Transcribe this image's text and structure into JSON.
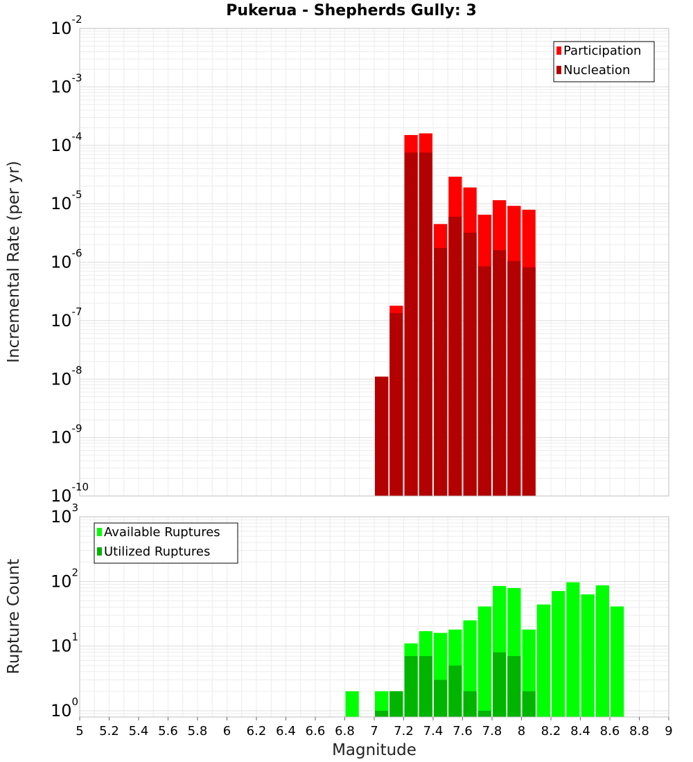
{
  "chart_data": {
    "title": "Pukerua - Shepherds Gully: 3",
    "xlabel": "Magnitude",
    "xlim": [
      5,
      9
    ],
    "xticks": [
      "5",
      "5.2",
      "5.4",
      "5.6",
      "5.8",
      "6",
      "6.2",
      "6.4",
      "6.6",
      "6.8",
      "7",
      "7.2",
      "7.4",
      "7.6",
      "7.8",
      "8",
      "8.2",
      "8.4",
      "8.6",
      "8.8",
      "9"
    ],
    "bin_width": 0.1,
    "panels": [
      {
        "type": "bar",
        "ylabel": "Incremental Rate (per yr)",
        "yscale": "log",
        "ylim": [
          1e-10,
          0.01
        ],
        "yticks": [
          {
            "base": "10",
            "exp": "-10"
          },
          {
            "base": "10",
            "exp": "-9"
          },
          {
            "base": "10",
            "exp": "-8"
          },
          {
            "base": "10",
            "exp": "-7"
          },
          {
            "base": "10",
            "exp": "-6"
          },
          {
            "base": "10",
            "exp": "-5"
          },
          {
            "base": "10",
            "exp": "-4"
          },
          {
            "base": "10",
            "exp": "-3"
          },
          {
            "base": "10",
            "exp": "-2"
          }
        ],
        "grid": true,
        "legend_position": "top-right",
        "series": [
          {
            "name": "Participation",
            "color": "#ff0000",
            "x": [
              7.05,
              7.15,
              7.25,
              7.35,
              7.45,
              7.55,
              7.65,
              7.75,
              7.85,
              7.95,
              8.05
            ],
            "values": [
              1.1e-08,
              1.8e-07,
              0.00015,
              0.00016,
              4.5e-06,
              2.9e-05,
              1.9e-05,
              6.5e-06,
              1.15e-05,
              9.2e-06,
              7.9e-06
            ]
          },
          {
            "name": "Nucleation",
            "color": "#b30000",
            "x": [
              7.05,
              7.15,
              7.25,
              7.35,
              7.45,
              7.55,
              7.65,
              7.75,
              7.85,
              7.95,
              8.05
            ],
            "values": [
              1.1e-08,
              1.35e-07,
              7.5e-05,
              7.5e-05,
              1.75e-06,
              6e-06,
              3.2e-06,
              8.5e-07,
              1.6e-06,
              1.05e-06,
              8.2e-07
            ]
          }
        ]
      },
      {
        "type": "bar",
        "ylabel": "Rupture Count",
        "yscale": "log",
        "ylim": [
          0.8,
          1000
        ],
        "yticks": [
          {
            "base": "10",
            "exp": "0"
          },
          {
            "base": "10",
            "exp": "1"
          },
          {
            "base": "10",
            "exp": "2"
          },
          {
            "base": "10",
            "exp": "3"
          }
        ],
        "grid": true,
        "legend_position": "top-left",
        "series": [
          {
            "name": "Available Ruptures",
            "color": "#00ff00",
            "x": [
              6.85,
              7.05,
              7.15,
              7.25,
              7.35,
              7.45,
              7.55,
              7.65,
              7.75,
              7.85,
              7.95,
              8.05,
              8.15,
              8.25,
              8.35,
              8.45,
              8.55,
              8.65
            ],
            "values": [
              2,
              2,
              2,
              11,
              17,
              16,
              18,
              25,
              41,
              85,
              79,
              18,
              44,
              71,
              97,
              63,
              87,
              41
            ]
          },
          {
            "name": "Utilized Ruptures",
            "color": "#00b400",
            "x": [
              7.05,
              7.15,
              7.25,
              7.35,
              7.45,
              7.55,
              7.65,
              7.75,
              7.85,
              7.95,
              8.05
            ],
            "values": [
              1,
              2,
              7,
              7,
              3,
              5,
              2,
              1,
              8,
              7,
              2
            ]
          }
        ]
      }
    ]
  }
}
